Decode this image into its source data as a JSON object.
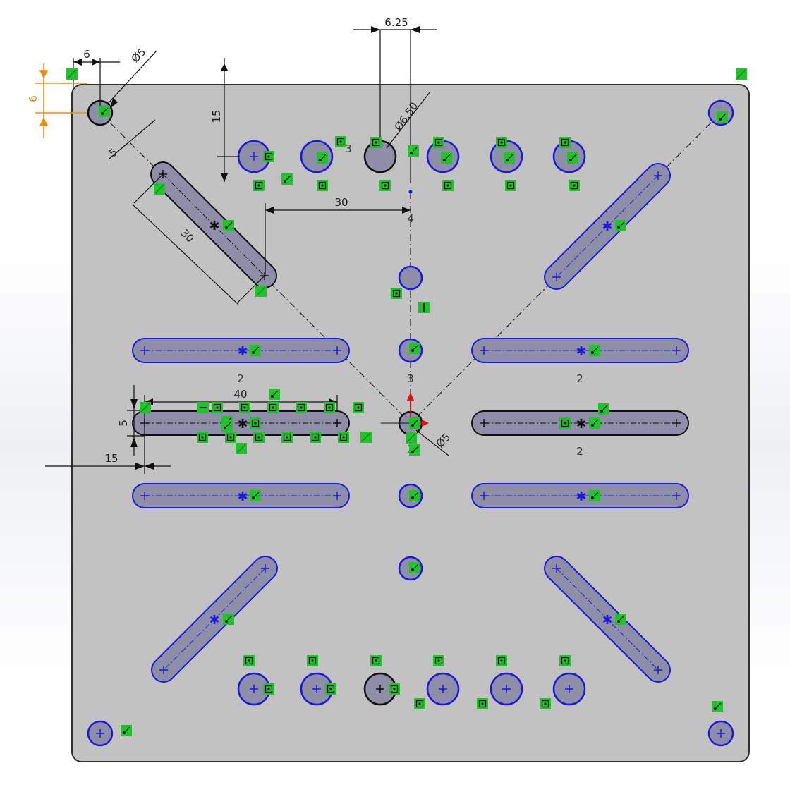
{
  "colors": {
    "plate_fill": "#c2c2c2",
    "plate_stroke": "#303030",
    "feature_fill": "#8e8ea9",
    "blue_sketch": "#1a1ad8",
    "black_sketch": "#111111",
    "relation_green": "#22c22c",
    "origin_red": "#e01010",
    "fixed_orange": "#f08a14"
  },
  "dimensions": {
    "corner_x": "6",
    "corner_y": "6",
    "corner_hole_dia": "Ø5",
    "top_offset": "15",
    "hole_spacing": "6.25",
    "hole_dia": "Ø6.50",
    "slot_width": "5",
    "slot_length": "30",
    "center_to_slot": "30",
    "slot_length_h": "40",
    "slot_width_h": "5",
    "slot_offset_h": "15",
    "center_hole_dia": "Ø5"
  },
  "labels": {
    "count_3_top": "3",
    "count_4": "4",
    "count_3_mid": "3",
    "count_2_left": "2",
    "count_2_right": "2",
    "count_2_right_lower": "2",
    "count_3_hole": "3"
  }
}
